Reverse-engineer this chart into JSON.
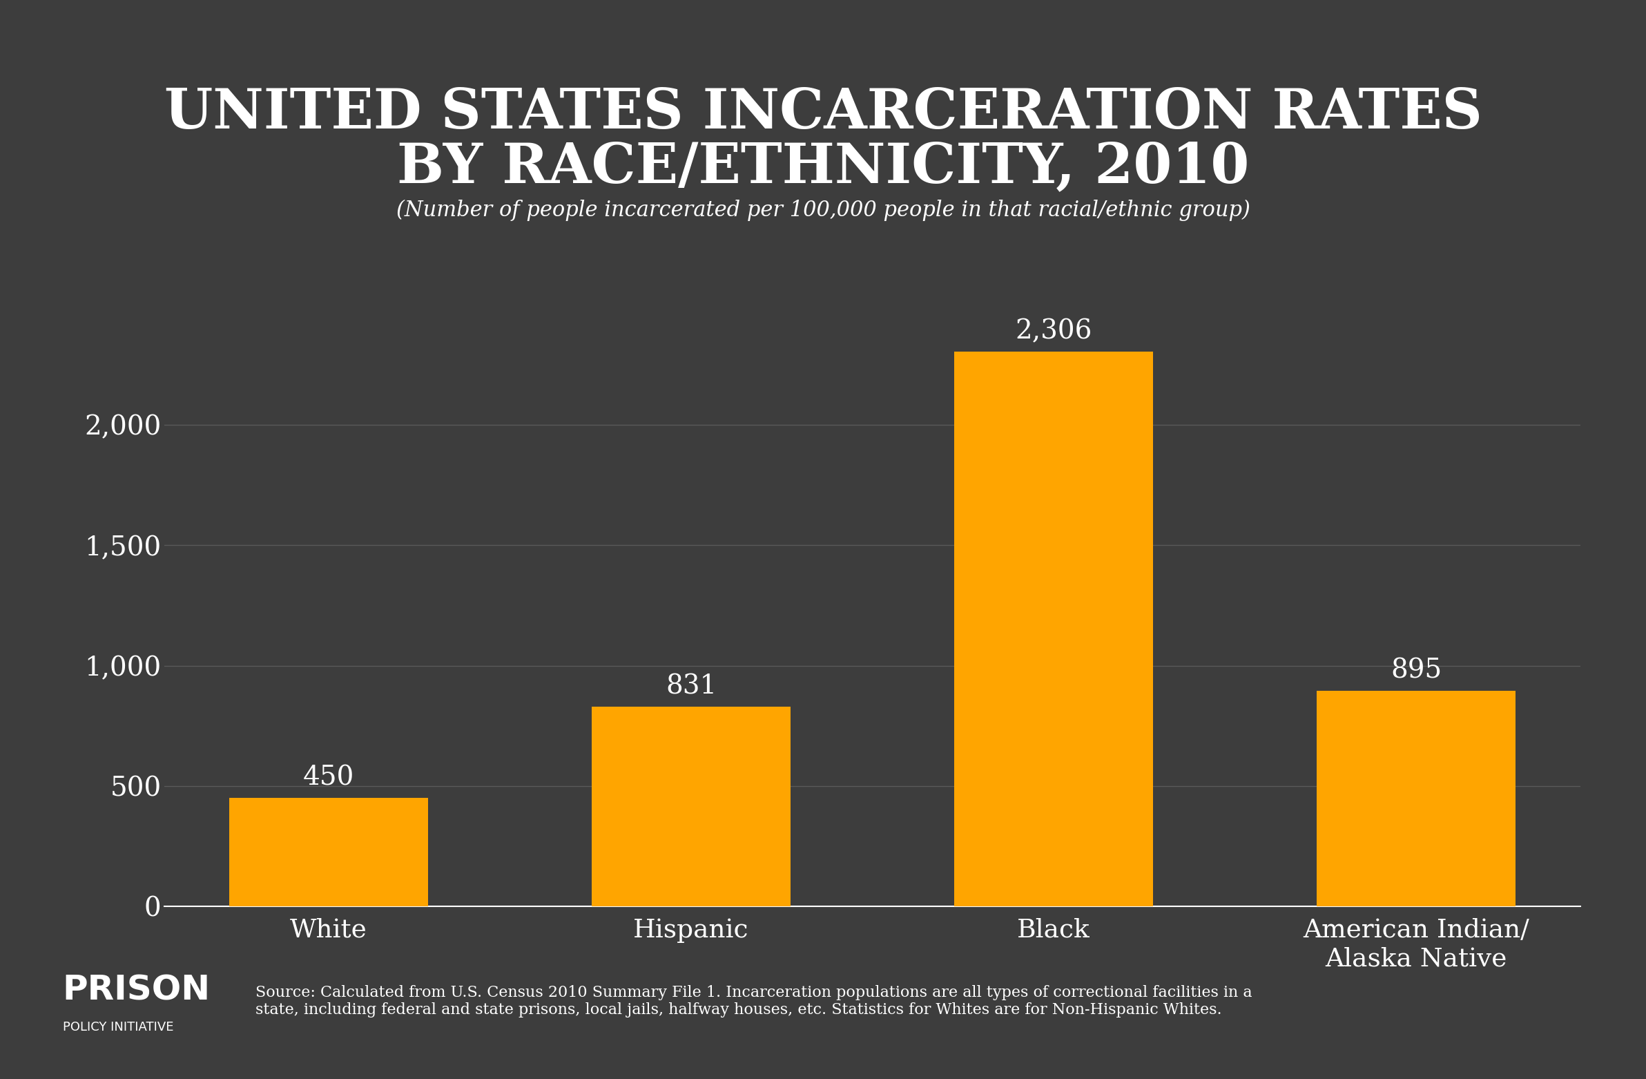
{
  "title_line1": "UNITED STATES INCARCERATION RATES",
  "title_line2": "BY RACE/ETHNICITY, 2010",
  "subtitle": "(Number of people incarcerated per 100,000 people in that racial/ethnic group)",
  "categories": [
    "White",
    "Hispanic",
    "Black",
    "American Indian/\nAlaska Native"
  ],
  "values": [
    450,
    831,
    2306,
    895
  ],
  "bar_color": "#FFA500",
  "background_color": "#3d3d3d",
  "text_color": "#ffffff",
  "grid_color": "#5a5a5a",
  "yticks": [
    0,
    500,
    1000,
    1500,
    2000
  ],
  "ytick_labels": [
    "0",
    "500",
    "1,000",
    "1,500",
    "2,000"
  ],
  "ylim": [
    0,
    2600
  ],
  "value_labels": [
    "450",
    "831",
    "2,306",
    "895"
  ],
  "source_text": "Source: Calculated from U.S. Census 2010 Summary File 1. Incarceration populations are all types of correctional facilities in a\nstate, including federal and state prisons, local jails, halfway houses, etc. Statistics for Whites are for Non-Hispanic Whites.",
  "logo_text_prison": "PRISON",
  "logo_text_policy": "POLICY INITIATIVE",
  "bar_width": 0.55,
  "title_fontsize": 58,
  "subtitle_fontsize": 22,
  "ytick_fontsize": 28,
  "xtick_fontsize": 27,
  "value_label_fontsize": 28
}
